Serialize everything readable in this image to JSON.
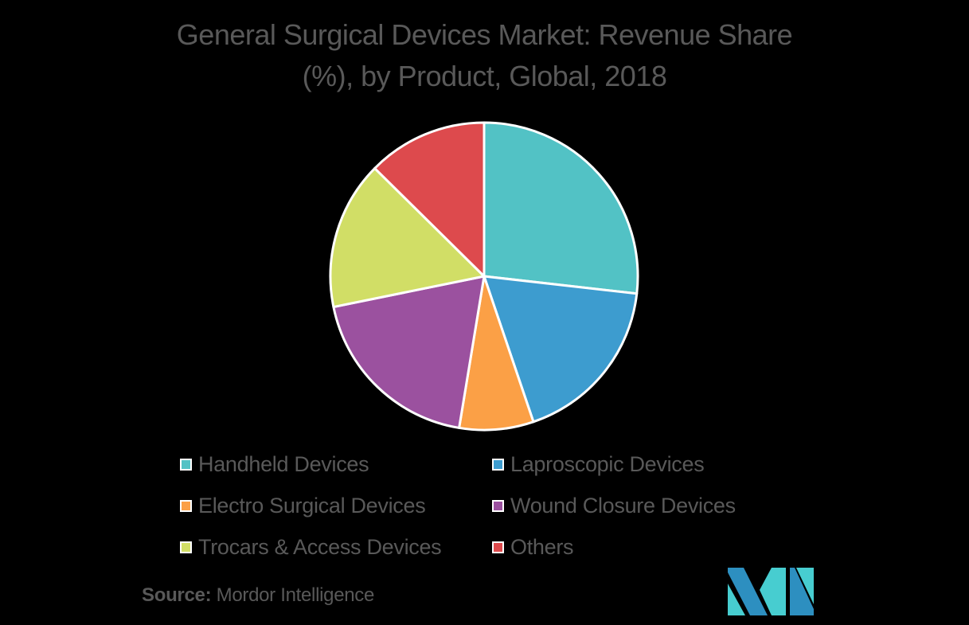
{
  "chart_data": {
    "type": "pie",
    "title": "General Surgical Devices Market: Revenue Share (%), by Product, Global, 2018",
    "title_lines": [
      "General Surgical Devices Market: Revenue Share",
      "(%), by Product, Global, 2018"
    ],
    "categories": [
      "Handheld Devices",
      "Laproscopic Devices",
      "Electro Surgical Devices",
      "Wound Closure Devices",
      "Trocars & Access Devices",
      "Others"
    ],
    "values": [
      26.8,
      18.0,
      7.8,
      19.2,
      15.6,
      12.6
    ],
    "colors": [
      "#52c2c5",
      "#3d9ccf",
      "#fba046",
      "#9b519f",
      "#d1de66",
      "#dd4a4d"
    ],
    "start_angle_deg": 0,
    "direction": "clockwise",
    "data_labels": false,
    "legend_position": "bottom",
    "legend_columns": 2
  },
  "legend": {
    "items": [
      {
        "label": "Handheld Devices",
        "color": "#52c2c5"
      },
      {
        "label": "Laproscopic Devices",
        "color": "#3d9ccf"
      },
      {
        "label": "Electro Surgical Devices",
        "color": "#fba046"
      },
      {
        "label": "Wound Closure Devices",
        "color": "#9b519f"
      },
      {
        "label": "Trocars & Access Devices",
        "color": "#d1de66"
      },
      {
        "label": "Others",
        "color": "#dd4a4d"
      }
    ]
  },
  "source": {
    "label": "Source:",
    "value": "Mordor Intelligence"
  },
  "logo": {
    "name": "mordor-intelligence-logo",
    "colors": [
      "#2d8fc0",
      "#47cdd0"
    ]
  }
}
